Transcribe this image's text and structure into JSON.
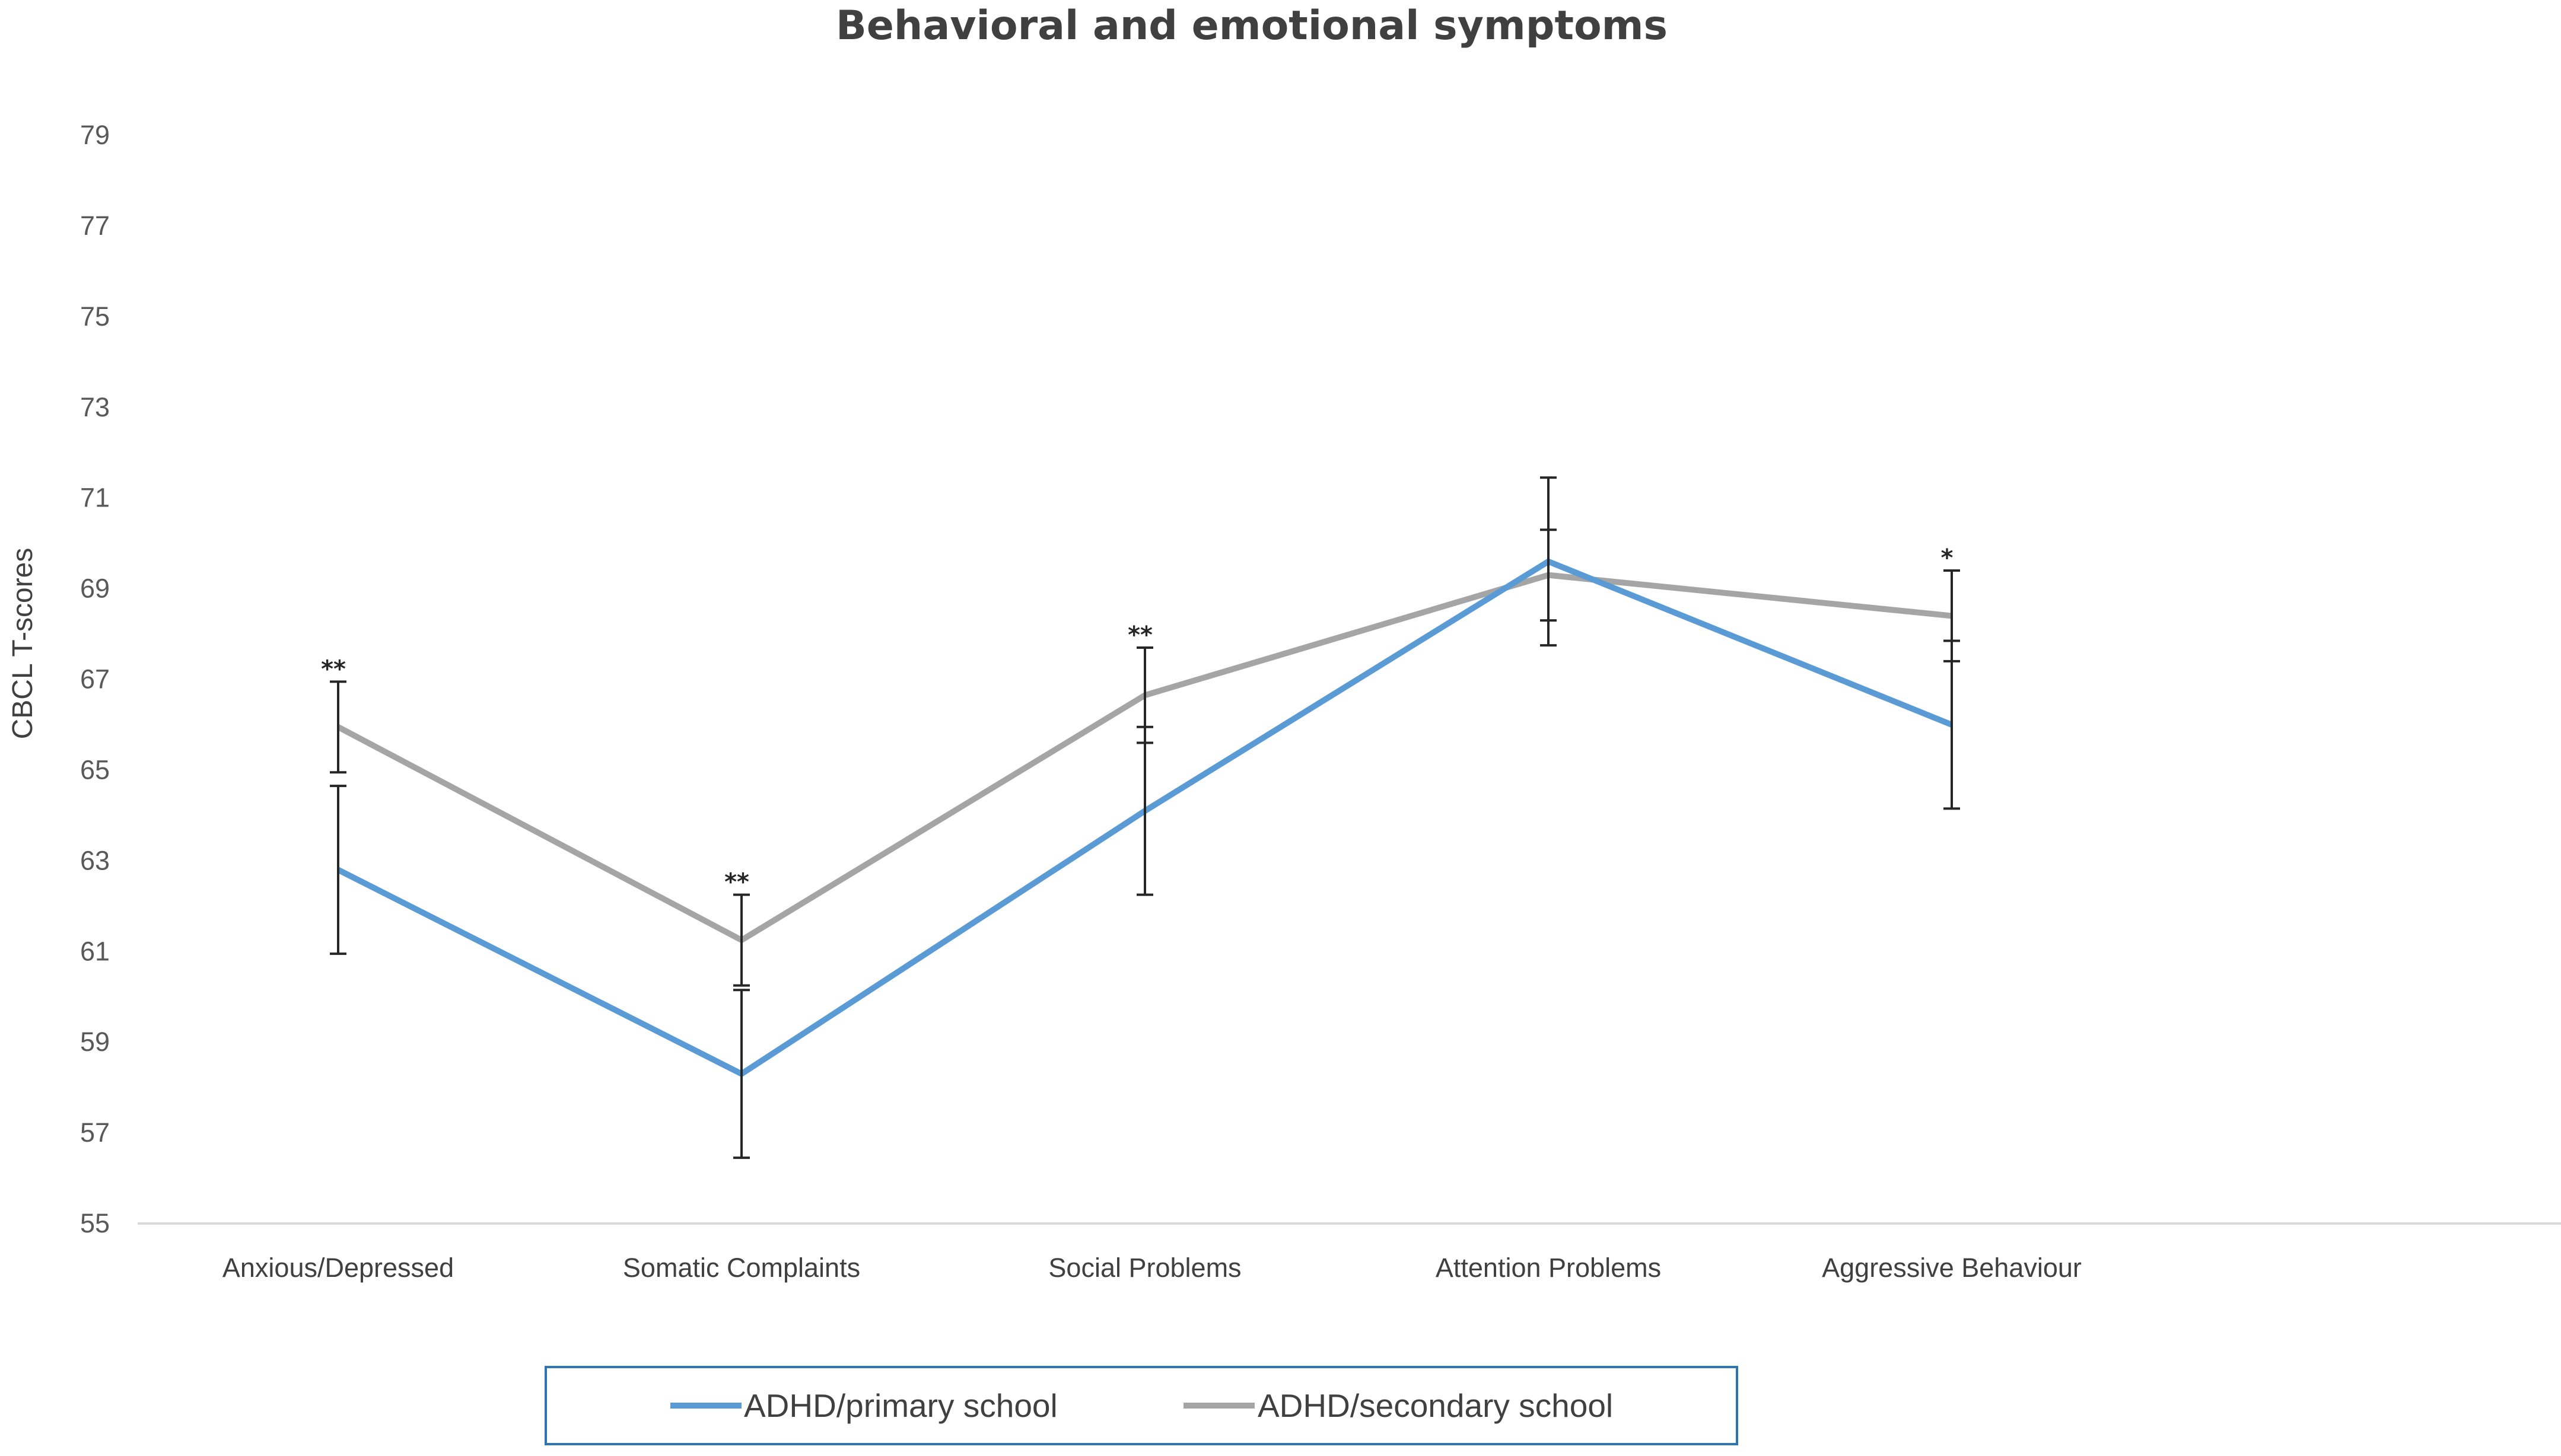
{
  "chart_data": {
    "type": "line",
    "title": "Behavioral and emotional symptoms",
    "xlabel": "",
    "ylabel": "CBCL T-scores",
    "ylim": [
      55,
      79
    ],
    "yticks": [
      "79",
      "77",
      "75",
      "73",
      "71",
      "69",
      "67",
      "65",
      "63",
      "61",
      "59",
      "57",
      "55"
    ],
    "categories": [
      "Anxious/Depressed",
      "Somatic Complaints",
      "Social Problems",
      "Attention Problems",
      "Aggressive Behaviour"
    ],
    "series": [
      {
        "name": "ADHD/primary school",
        "color": "#5b9bd5",
        "values": [
          62.8,
          58.3,
          64.1,
          69.6,
          66.0
        ],
        "error": [
          1.85,
          1.85,
          1.85,
          1.85,
          1.85
        ]
      },
      {
        "name": "ADHD/secondary school",
        "color": "#a5a5a5",
        "values": [
          65.95,
          61.25,
          66.65,
          69.3,
          68.4
        ],
        "error": [
          1.0,
          1.0,
          1.05,
          1.0,
          1.0
        ]
      }
    ],
    "significance": [
      "**",
      "**",
      "**",
      "",
      "*"
    ],
    "grid": false,
    "legend_position": "bottom"
  }
}
